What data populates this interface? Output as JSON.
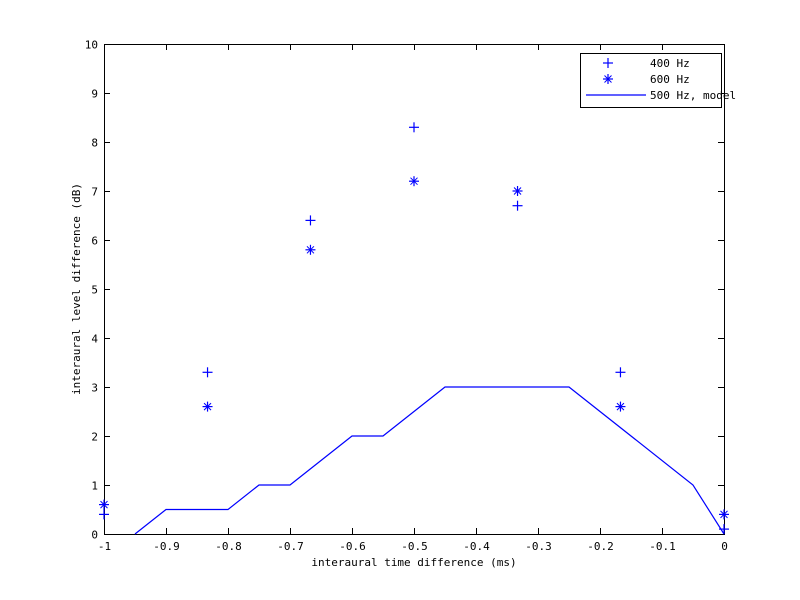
{
  "chart_data": {
    "type": "scatter",
    "title": "",
    "xlabel": "interaural time difference (ms)",
    "ylabel": "interaural level difference (dB)",
    "xlim": [
      -1,
      0
    ],
    "ylim": [
      0,
      10
    ],
    "grid": false,
    "legend_position": "upper right",
    "xticks": [
      -1,
      -0.9,
      -0.8,
      -0.7,
      -0.6,
      -0.5,
      -0.4,
      -0.3,
      -0.2,
      -0.1,
      0
    ],
    "xtick_labels": [
      "-1",
      "-0.9",
      "-0.8",
      "-0.7",
      "-0.6",
      "-0.5",
      "-0.4",
      "-0.3",
      "-0.2",
      "-0.1",
      "0"
    ],
    "yticks": [
      0,
      1,
      2,
      3,
      4,
      5,
      6,
      7,
      8,
      9,
      10
    ],
    "ytick_labels": [
      "0",
      "1",
      "2",
      "3",
      "4",
      "5",
      "6",
      "7",
      "8",
      "9",
      "10"
    ],
    "series": [
      {
        "name": "400 Hz",
        "marker": "plus",
        "color": "#0000ff",
        "x": [
          -1,
          -0.833,
          -0.667,
          -0.5,
          -0.333,
          -0.167,
          0
        ],
        "y": [
          0.4,
          3.3,
          6.4,
          8.3,
          6.7,
          3.3,
          0.1
        ]
      },
      {
        "name": "600 Hz",
        "marker": "asterisk",
        "color": "#0000ff",
        "x": [
          -1,
          -0.833,
          -0.667,
          -0.5,
          -0.333,
          -0.167,
          0
        ],
        "y": [
          0.6,
          2.6,
          5.8,
          7.2,
          7.0,
          2.6,
          0.4
        ]
      },
      {
        "name": "500 Hz, model",
        "marker": "line",
        "color": "#0000ff",
        "x": [
          -0.95,
          -0.9,
          -0.8,
          -0.75,
          -0.7,
          -0.6,
          -0.55,
          -0.45,
          -0.25,
          -0.05,
          0
        ],
        "y": [
          0,
          0.5,
          0.5,
          1,
          1,
          2,
          2,
          3,
          3,
          1,
          0
        ]
      }
    ]
  },
  "legend": {
    "entries": [
      "400 Hz",
      "600 Hz",
      "500 Hz, model"
    ]
  },
  "colors": {
    "series": "#0000ff",
    "axes": "#000000",
    "background": "#ffffff"
  }
}
